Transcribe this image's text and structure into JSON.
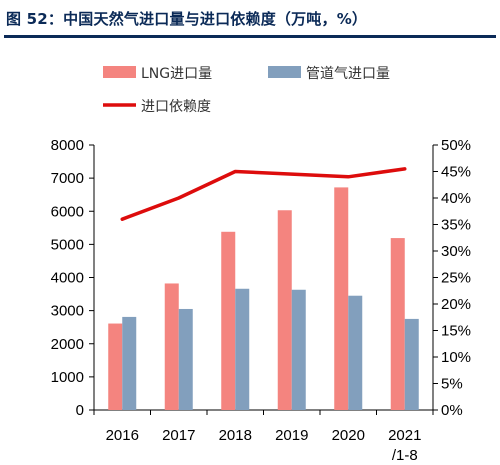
{
  "figure_title": "图 52：中国天然气进口量与进口依赖度（万吨，%）",
  "chart_data": {
    "type": "bar",
    "categories": [
      "2016",
      "2017",
      "2018",
      "2019",
      "2020",
      "2021"
    ],
    "category_sublabels": [
      "",
      "",
      "",
      "",
      "",
      "/1-8"
    ],
    "series": [
      {
        "name": "LNG进口量",
        "kind": "bar",
        "axis": "left",
        "color": "#f4847f",
        "values": [
          2610,
          3820,
          5380,
          6030,
          6720,
          5190
        ]
      },
      {
        "name": "管道气进口量",
        "kind": "bar",
        "axis": "left",
        "color": "#829fbd",
        "values": [
          2810,
          3050,
          3660,
          3630,
          3450,
          2750
        ]
      },
      {
        "name": "进口依赖度",
        "kind": "line",
        "axis": "right",
        "color": "#dd0c0c",
        "values": [
          36,
          40,
          45,
          44.5,
          44,
          45.5
        ]
      }
    ],
    "y_left": {
      "min": 0,
      "max": 8000,
      "ticks": [
        "0",
        "1000",
        "2000",
        "3000",
        "4000",
        "5000",
        "6000",
        "7000",
        "8000"
      ]
    },
    "y_right": {
      "min": 0,
      "max": 50,
      "ticks": [
        "0%",
        "5%",
        "10%",
        "15%",
        "20%",
        "25%",
        "30%",
        "35%",
        "40%",
        "45%",
        "50%"
      ]
    },
    "legend": {
      "placement": "top"
    },
    "grid": false
  }
}
